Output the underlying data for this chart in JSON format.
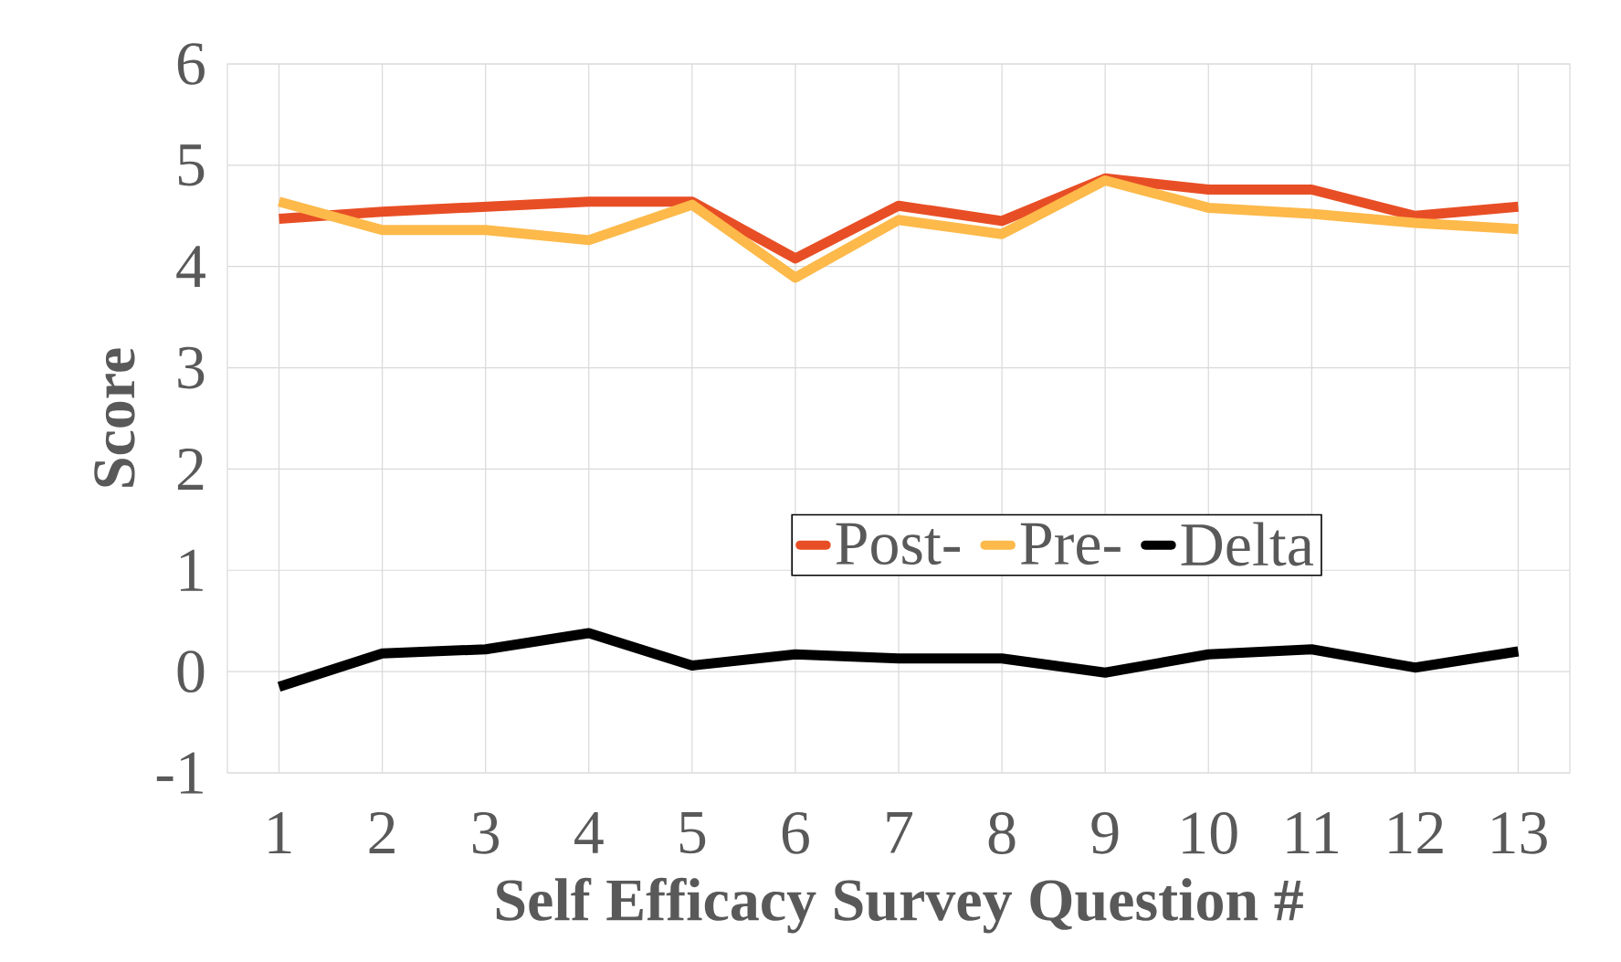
{
  "chart_data": {
    "type": "line",
    "xlabel": "Self Efficacy Survey Question #",
    "ylabel": "Score",
    "categories": [
      "1",
      "2",
      "3",
      "4",
      "5",
      "6",
      "7",
      "8",
      "9",
      "10",
      "11",
      "12",
      "13"
    ],
    "series": [
      {
        "name": "Post-",
        "color": "#e84e25",
        "values": [
          4.47,
          4.54,
          4.59,
          4.64,
          4.64,
          4.08,
          4.6,
          4.45,
          4.87,
          4.76,
          4.76,
          4.5,
          4.59
        ]
      },
      {
        "name": "Pre-",
        "color": "#fdb94a",
        "values": [
          4.64,
          4.36,
          4.36,
          4.26,
          4.61,
          3.89,
          4.46,
          4.32,
          4.85,
          4.58,
          4.52,
          4.43,
          4.37
        ]
      },
      {
        "name": "Delta",
        "color": "#000000",
        "values": [
          -0.15,
          0.18,
          0.22,
          0.38,
          0.06,
          0.17,
          0.13,
          0.13,
          -0.01,
          0.17,
          0.22,
          0.04,
          0.2
        ]
      }
    ],
    "ylim": [
      -1,
      6
    ],
    "yticks": [
      -1,
      0,
      1,
      2,
      3,
      4,
      5,
      6
    ],
    "grid": true,
    "legend": "right",
    "marker": "none",
    "line_style": "solid"
  }
}
